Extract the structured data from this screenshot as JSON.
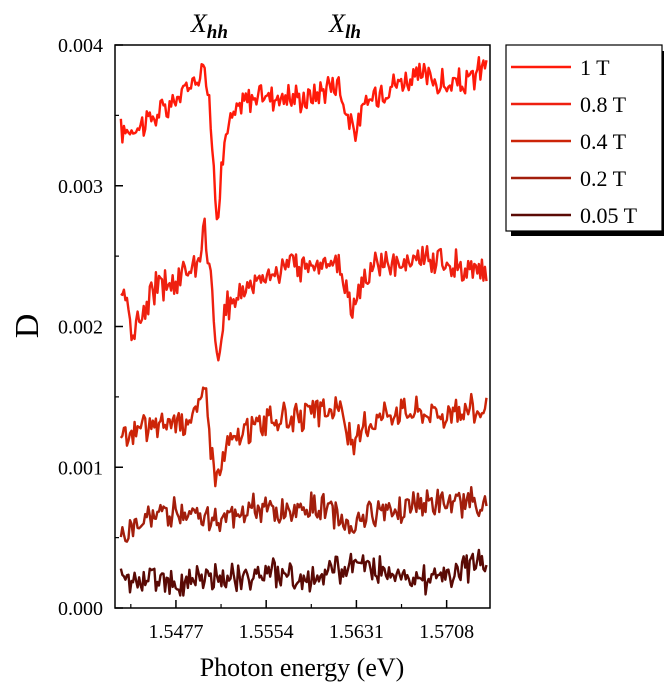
{
  "chart_data": {
    "type": "line",
    "xlabel": "Photon energy (eV)",
    "ylabel": "D",
    "xlim": [
      1.5425,
      1.5745
    ],
    "ylim": [
      0,
      0.004
    ],
    "xticks": [
      1.5477,
      1.5554,
      1.5631,
      1.5708
    ],
    "xtick_labels": [
      "1.5477",
      "1.5554",
      "1.5631",
      "1.5708"
    ],
    "yticks": [
      0,
      0.001,
      0.002,
      0.003,
      0.004
    ],
    "ytick_labels": [
      "0.000",
      "0.001",
      "0.002",
      "0.003",
      "0.004"
    ],
    "grid": false,
    "legend_position": "outside-top-right",
    "annotations": [
      {
        "main": "X",
        "sub": "hh",
        "x": 1.55
      },
      {
        "main": "X",
        "sub": "lh",
        "x": 1.5618
      }
    ],
    "series": [
      {
        "name": "1 T",
        "color": "#ff1a0a",
        "x": [
          1.543,
          1.545,
          1.547,
          1.5485,
          1.5495,
          1.5501,
          1.5505,
          1.5512,
          1.552,
          1.5535,
          1.555,
          1.557,
          1.559,
          1.5605,
          1.5615,
          1.5625,
          1.5632,
          1.564,
          1.5655,
          1.567,
          1.569,
          1.571,
          1.573,
          1.5742
        ],
        "y": [
          0.00338,
          0.00345,
          0.00355,
          0.00368,
          0.00378,
          0.0039,
          0.0036,
          0.0028,
          0.0034,
          0.0036,
          0.00365,
          0.00363,
          0.00362,
          0.0037,
          0.00375,
          0.00345,
          0.0034,
          0.0036,
          0.0037,
          0.00375,
          0.00378,
          0.0037,
          0.00375,
          0.0039
        ]
      },
      {
        "name": "0.8 T",
        "color": "#ee2010",
        "x": [
          1.543,
          1.544,
          1.546,
          1.548,
          1.5495,
          1.5501,
          1.5506,
          1.5513,
          1.552,
          1.554,
          1.556,
          1.558,
          1.5605,
          1.5618,
          1.5628,
          1.5635,
          1.565,
          1.567,
          1.569,
          1.571,
          1.573,
          1.5742
        ],
        "y": [
          0.0023,
          0.00195,
          0.00228,
          0.00235,
          0.00245,
          0.0027,
          0.0024,
          0.0017,
          0.00215,
          0.0023,
          0.0024,
          0.00242,
          0.00248,
          0.0024,
          0.00213,
          0.0023,
          0.00245,
          0.00242,
          0.0025,
          0.00245,
          0.00242,
          0.0024
        ]
      },
      {
        "name": "0.4 T",
        "color": "#cc2408",
        "x": [
          1.543,
          1.545,
          1.547,
          1.549,
          1.5498,
          1.5502,
          1.5506,
          1.5512,
          1.552,
          1.554,
          1.556,
          1.558,
          1.5605,
          1.5618,
          1.5628,
          1.5635,
          1.565,
          1.567,
          1.569,
          1.571,
          1.573,
          1.5742
        ],
        "y": [
          0.0012,
          0.00128,
          0.00132,
          0.00135,
          0.00145,
          0.0016,
          0.0012,
          0.0009,
          0.00115,
          0.00128,
          0.00135,
          0.00135,
          0.0014,
          0.00142,
          0.00112,
          0.00125,
          0.00138,
          0.00142,
          0.0014,
          0.00138,
          0.00142,
          0.0014
        ]
      },
      {
        "name": "0.2 T",
        "color": "#a21e0c",
        "x": [
          1.543,
          1.545,
          1.547,
          1.549,
          1.5505,
          1.552,
          1.554,
          1.556,
          1.558,
          1.5605,
          1.5618,
          1.5628,
          1.5635,
          1.565,
          1.567,
          1.569,
          1.571,
          1.573,
          1.5742
        ],
        "y": [
          0.0005,
          0.00062,
          0.00068,
          0.0007,
          0.00062,
          0.00065,
          0.0007,
          0.00068,
          0.0007,
          0.00072,
          0.00062,
          0.00058,
          0.00065,
          0.0007,
          0.00072,
          0.00075,
          0.00072,
          0.00078,
          0.0007
        ]
      },
      {
        "name": "0.05 T",
        "color": "#5a0a05",
        "x": [
          1.543,
          1.545,
          1.547,
          1.549,
          1.551,
          1.553,
          1.555,
          1.557,
          1.559,
          1.561,
          1.563,
          1.565,
          1.567,
          1.569,
          1.571,
          1.573,
          1.5742
        ],
        "y": [
          0.0002,
          0.00022,
          0.00018,
          0.0002,
          0.00022,
          0.00022,
          0.00025,
          0.00022,
          0.0002,
          0.00025,
          0.00032,
          0.00028,
          0.00025,
          0.0002,
          0.00025,
          0.0003,
          0.00035
        ]
      }
    ]
  }
}
